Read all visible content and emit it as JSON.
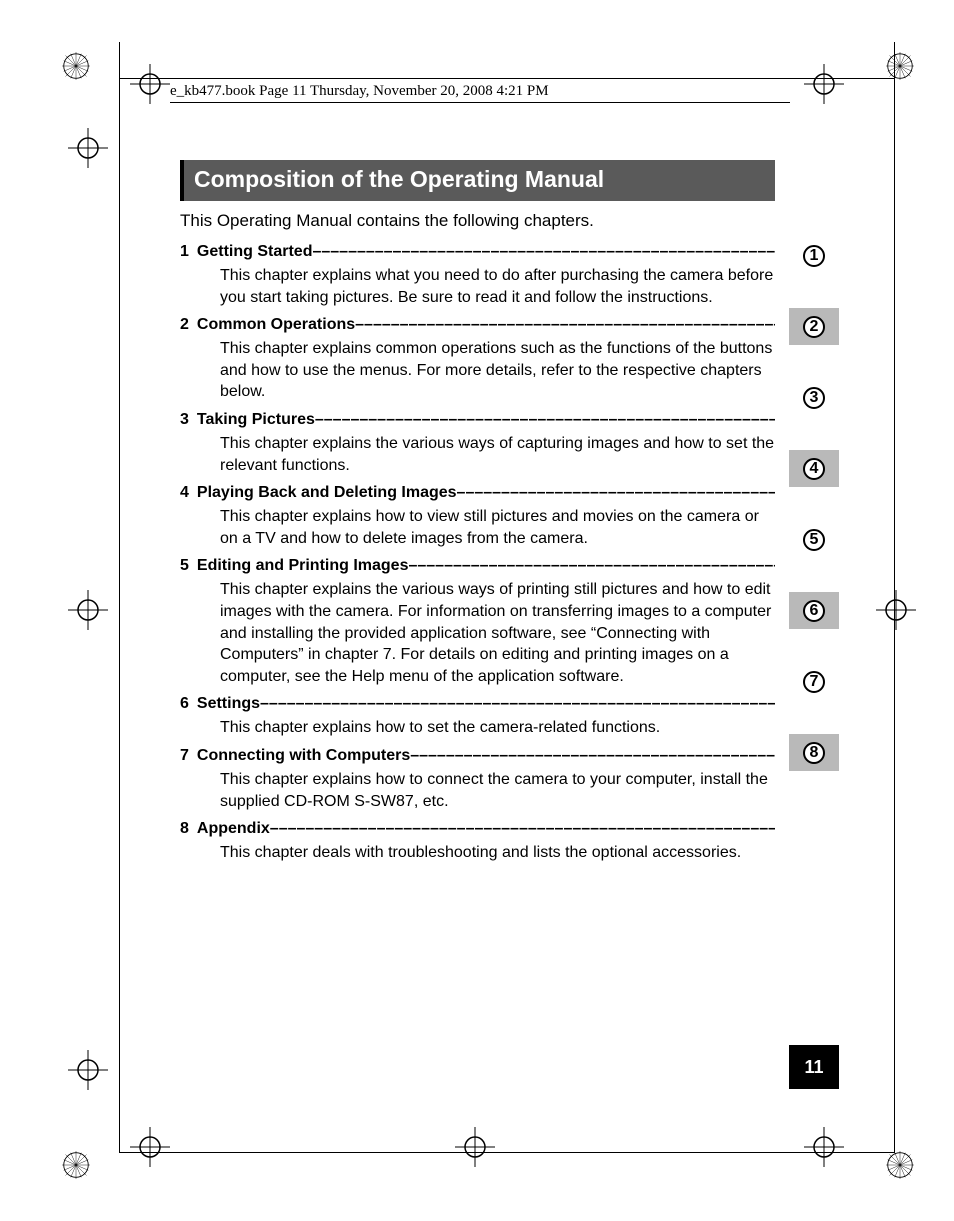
{
  "header": {
    "running_head": "e_kb477.book  Page 11  Thursday, November 20, 2008  4:21 PM"
  },
  "title": "Composition of the Operating Manual",
  "intro": "This Operating Manual contains the following chapters.",
  "chapters": [
    {
      "num": "1",
      "title": "Getting Started",
      "desc": "This chapter explains what you need to do after purchasing the camera before you start taking pictures. Be sure to read it and follow the instructions."
    },
    {
      "num": "2",
      "title": "Common Operations",
      "desc": "This chapter explains common operations such as the functions of the buttons and how to use the menus. For more details, refer to the respective chapters below."
    },
    {
      "num": "3",
      "title": "Taking Pictures",
      "desc": "This chapter explains the various ways of capturing images and how to set the relevant functions."
    },
    {
      "num": "4",
      "title": "Playing Back and Deleting Images",
      "desc": "This chapter explains how to view still pictures and movies on the camera or on a TV and how to delete images from the camera."
    },
    {
      "num": "5",
      "title": "Editing and Printing Images",
      "desc": "This chapter explains the various ways of printing still pictures and how to edit images with the camera. For information on transferring images to a computer and installing the provided application software, see “Connecting with Computers” in chapter 7. For details on editing and printing images on a computer, see the Help menu of the application software."
    },
    {
      "num": "6",
      "title": "Settings",
      "desc": "This chapter explains how to set the camera-related functions."
    },
    {
      "num": "7",
      "title": "Connecting with Computers",
      "desc": "This chapter explains how to connect the camera to your computer, install the supplied CD-ROM S-SW87, etc."
    },
    {
      "num": "8",
      "title": "Appendix",
      "desc": "This chapter deals with troubleshooting and lists the optional accessories."
    }
  ],
  "tabs": [
    {
      "n": "1",
      "bg": "#ffffff"
    },
    {
      "n": "2",
      "bg": "#b9b9b9"
    },
    {
      "n": "3",
      "bg": "#ffffff"
    },
    {
      "n": "4",
      "bg": "#b9b9b9"
    },
    {
      "n": "5",
      "bg": "#ffffff"
    },
    {
      "n": "6",
      "bg": "#b9b9b9"
    },
    {
      "n": "7",
      "bg": "#ffffff"
    },
    {
      "n": "8",
      "bg": "#b9b9b9"
    }
  ],
  "page_number": "11",
  "colors": {
    "title_bg": "#5a5a5a",
    "title_fg": "#ffffff",
    "tab_gray": "#b9b9b9",
    "page_block_bg": "#000000",
    "page_block_fg": "#ffffff"
  },
  "typography": {
    "title_fontsize": 23,
    "body_fontsize": 16,
    "intro_fontsize": 17,
    "header_fontsize": 15,
    "tab_num_fontsize": 16,
    "page_num_fontsize": 18
  },
  "dash_fill": "––––––––––––––––––––––––––––––––––––––––––––––––––––––––––––––––––––––––––––––––––"
}
